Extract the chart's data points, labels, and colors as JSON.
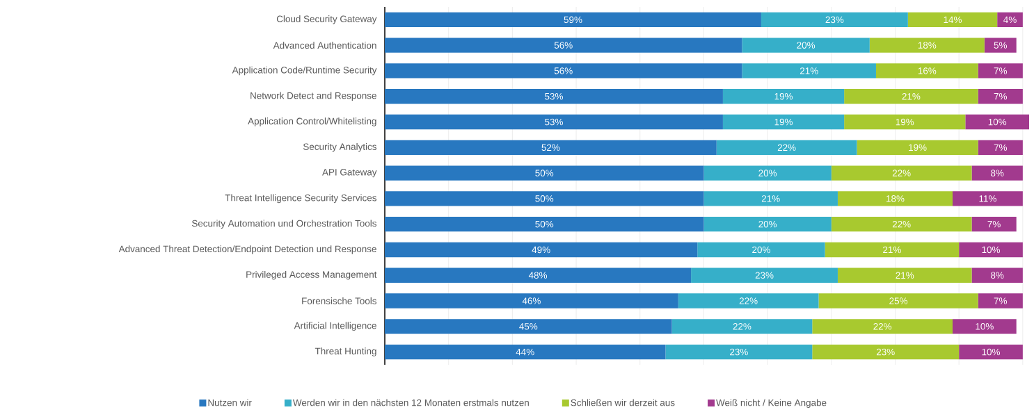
{
  "chart_data": {
    "type": "bar",
    "orientation": "horizontal",
    "stacked": true,
    "grid": "x",
    "legend": "bottom",
    "tick_labels": "y",
    "categories": [
      "Cloud Security Gateway",
      "Advanced Authentication",
      "Application Code/Runtime Security",
      "Network Detect and Response",
      "Application Control/Whitelisting",
      "Security Analytics",
      "API Gateway",
      "Threat Intelligence Security Services",
      "Security Automation und Orchestration Tools",
      "Advanced Threat Detection/Endpoint Detection und Response",
      "Privileged Access Management",
      "Forensische Tools",
      "Artificial Intelligence",
      "Threat Hunting"
    ],
    "xlim": [
      0,
      101
    ],
    "xticks": [
      {
        "value": 0,
        "label": null
      },
      {
        "value": 10,
        "label": null
      },
      {
        "value": 20,
        "label": null
      },
      {
        "value": 30,
        "label": null
      },
      {
        "value": 40,
        "label": null
      },
      {
        "value": 50,
        "label": null
      },
      {
        "value": 60,
        "label": null
      },
      {
        "value": 70,
        "label": null
      },
      {
        "value": 80,
        "label": null
      },
      {
        "value": 90,
        "label": null
      },
      {
        "value": 100,
        "label": null
      }
    ],
    "series": [
      {
        "name": "Nutzen wir",
        "color": "#2878c0",
        "values": [
          59,
          56,
          56,
          53,
          53,
          52,
          50,
          50,
          50,
          49,
          48,
          46,
          45,
          44
        ],
        "value_labels": [
          "59%",
          "56%",
          "56%",
          "53%",
          "53%",
          "52%",
          "50%",
          "50%",
          "50%",
          "49%",
          "48%",
          "46%",
          "45%",
          "44%"
        ]
      },
      {
        "name": "Werden wir in den nächsten 12 Monaten erstmals nutzen",
        "color": "#36afc9",
        "values": [
          23,
          20,
          21,
          19,
          19,
          22,
          20,
          21,
          20,
          20,
          23,
          22,
          22,
          23
        ],
        "value_labels": [
          "23%",
          "20%",
          "21%",
          "19%",
          "19%",
          "22%",
          "20%",
          "21%",
          "20%",
          "20%",
          "23%",
          "22%",
          "22%",
          "23%"
        ]
      },
      {
        "name": "Schließen wir derzeit aus",
        "color": "#a8c92f",
        "values": [
          14,
          18,
          16,
          21,
          19,
          19,
          22,
          18,
          22,
          21,
          21,
          25,
          22,
          23
        ],
        "value_labels": [
          "14%",
          "18%",
          "16%",
          "21%",
          "19%",
          "19%",
          "22%",
          "18%",
          "22%",
          "21%",
          "21%",
          "25%",
          "22%",
          "23%"
        ]
      },
      {
        "name": "Weiß nicht / Keine Angabe",
        "color": "#a23a8e",
        "values": [
          4,
          5,
          7,
          7,
          10,
          7,
          8,
          11,
          7,
          10,
          8,
          7,
          10,
          10
        ],
        "value_labels": [
          "4%",
          "5%",
          "7%",
          "7%",
          "10%",
          "7%",
          "8%",
          "11%",
          "7%",
          "10%",
          "8%",
          "7%",
          "10%",
          "10%"
        ]
      }
    ]
  }
}
